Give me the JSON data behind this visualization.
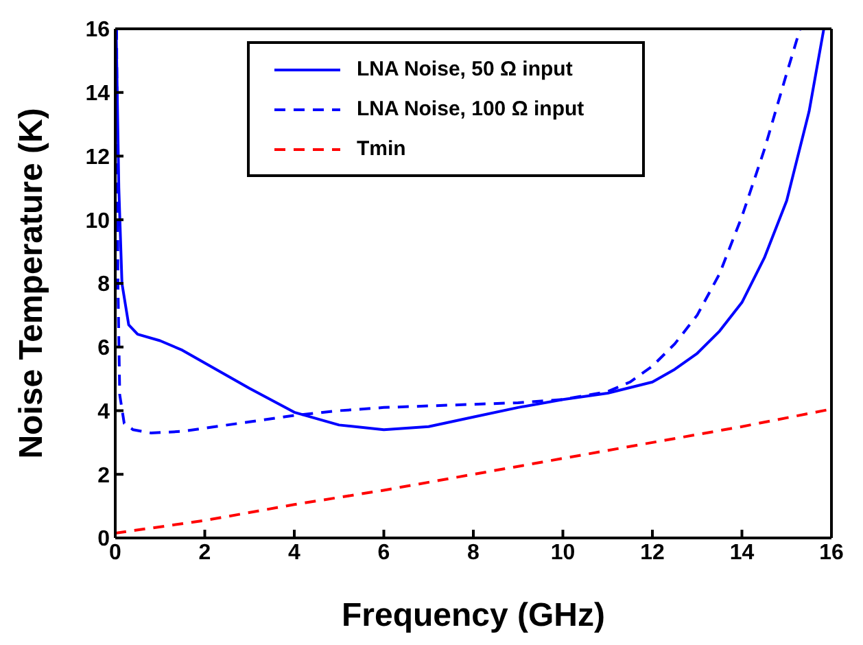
{
  "chart_data": {
    "type": "line",
    "xlabel": "Frequency (GHz)",
    "ylabel": "Noise Temperature (K)",
    "xlim": [
      0,
      16
    ],
    "ylim": [
      0,
      16
    ],
    "xticks": [
      0,
      2,
      4,
      6,
      8,
      10,
      12,
      14,
      16
    ],
    "yticks": [
      0,
      2,
      4,
      6,
      8,
      10,
      12,
      14,
      16
    ],
    "grid": false,
    "legend": "top",
    "marker": "none",
    "series": [
      {
        "name": "LNA Noise, 50 Ω input",
        "color": "#0000ff",
        "line_style": "solid",
        "x": [
          0.02,
          0.08,
          0.15,
          0.3,
          0.5,
          1,
          1.5,
          2,
          3,
          4,
          5,
          6,
          7,
          8,
          9,
          10,
          11,
          12,
          12.5,
          13,
          13.5,
          14,
          14.5,
          15,
          15.5,
          15.83
        ],
        "values": [
          16,
          11,
          8,
          6.7,
          6.4,
          6.2,
          5.9,
          5.5,
          4.7,
          3.95,
          3.55,
          3.4,
          3.5,
          3.8,
          4.1,
          4.35,
          4.55,
          4.9,
          5.3,
          5.8,
          6.5,
          7.4,
          8.8,
          10.6,
          13.4,
          16
        ]
      },
      {
        "name": "LNA Noise, 100 Ω input",
        "color": "#0000ff",
        "line_style": "dashed",
        "x": [
          0.03,
          0.06,
          0.1,
          0.2,
          0.4,
          0.8,
          1.5,
          2,
          3,
          4,
          5,
          6,
          7,
          8,
          9,
          10,
          11,
          11.5,
          12,
          12.5,
          13,
          13.5,
          14,
          14.5,
          15,
          15.3
        ],
        "values": [
          16,
          8,
          4.5,
          3.6,
          3.4,
          3.3,
          3.35,
          3.45,
          3.65,
          3.85,
          4.0,
          4.1,
          4.15,
          4.2,
          4.25,
          4.35,
          4.6,
          4.9,
          5.4,
          6.1,
          7.0,
          8.3,
          10.1,
          12.2,
          14.6,
          16
        ]
      },
      {
        "name": "Tmin",
        "color": "#ff0000",
        "line_style": "dashed",
        "x": [
          0,
          2,
          4,
          6,
          8,
          10,
          12,
          14,
          16
        ],
        "values": [
          0.15,
          0.55,
          1.05,
          1.5,
          2.0,
          2.5,
          3.0,
          3.5,
          4.05
        ]
      }
    ]
  }
}
